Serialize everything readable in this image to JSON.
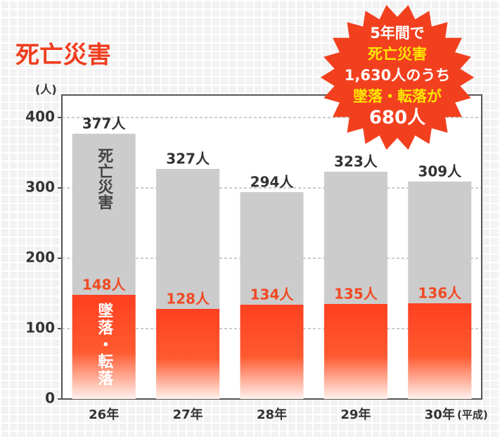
{
  "chart_data": {
    "type": "bar",
    "title": "死亡災害",
    "categories": [
      "26年",
      "27年",
      "28年",
      "29年",
      "30年"
    ],
    "series": [
      {
        "name": "死亡災害",
        "color": "#cccccc",
        "values": [
          377,
          327,
          294,
          323,
          309
        ],
        "value_labels": [
          "377人",
          "327人",
          "294人",
          "323人",
          "309人"
        ]
      },
      {
        "name": "墜落・転落",
        "color": "#ff4020",
        "values": [
          148,
          128,
          134,
          135,
          136
        ],
        "value_labels": [
          "148人",
          "128人",
          "134人",
          "135人",
          "136人"
        ]
      }
    ],
    "ylim": [
      0,
      432
    ],
    "yticks": [
      0,
      100,
      200,
      300,
      400
    ],
    "grid": true,
    "y_unit": "(人)",
    "x_unit": "(平成)",
    "annotation": [
      "5年間で",
      "死亡災害",
      "1,630人のうち",
      "墜落・転落が",
      "680人"
    ]
  }
}
